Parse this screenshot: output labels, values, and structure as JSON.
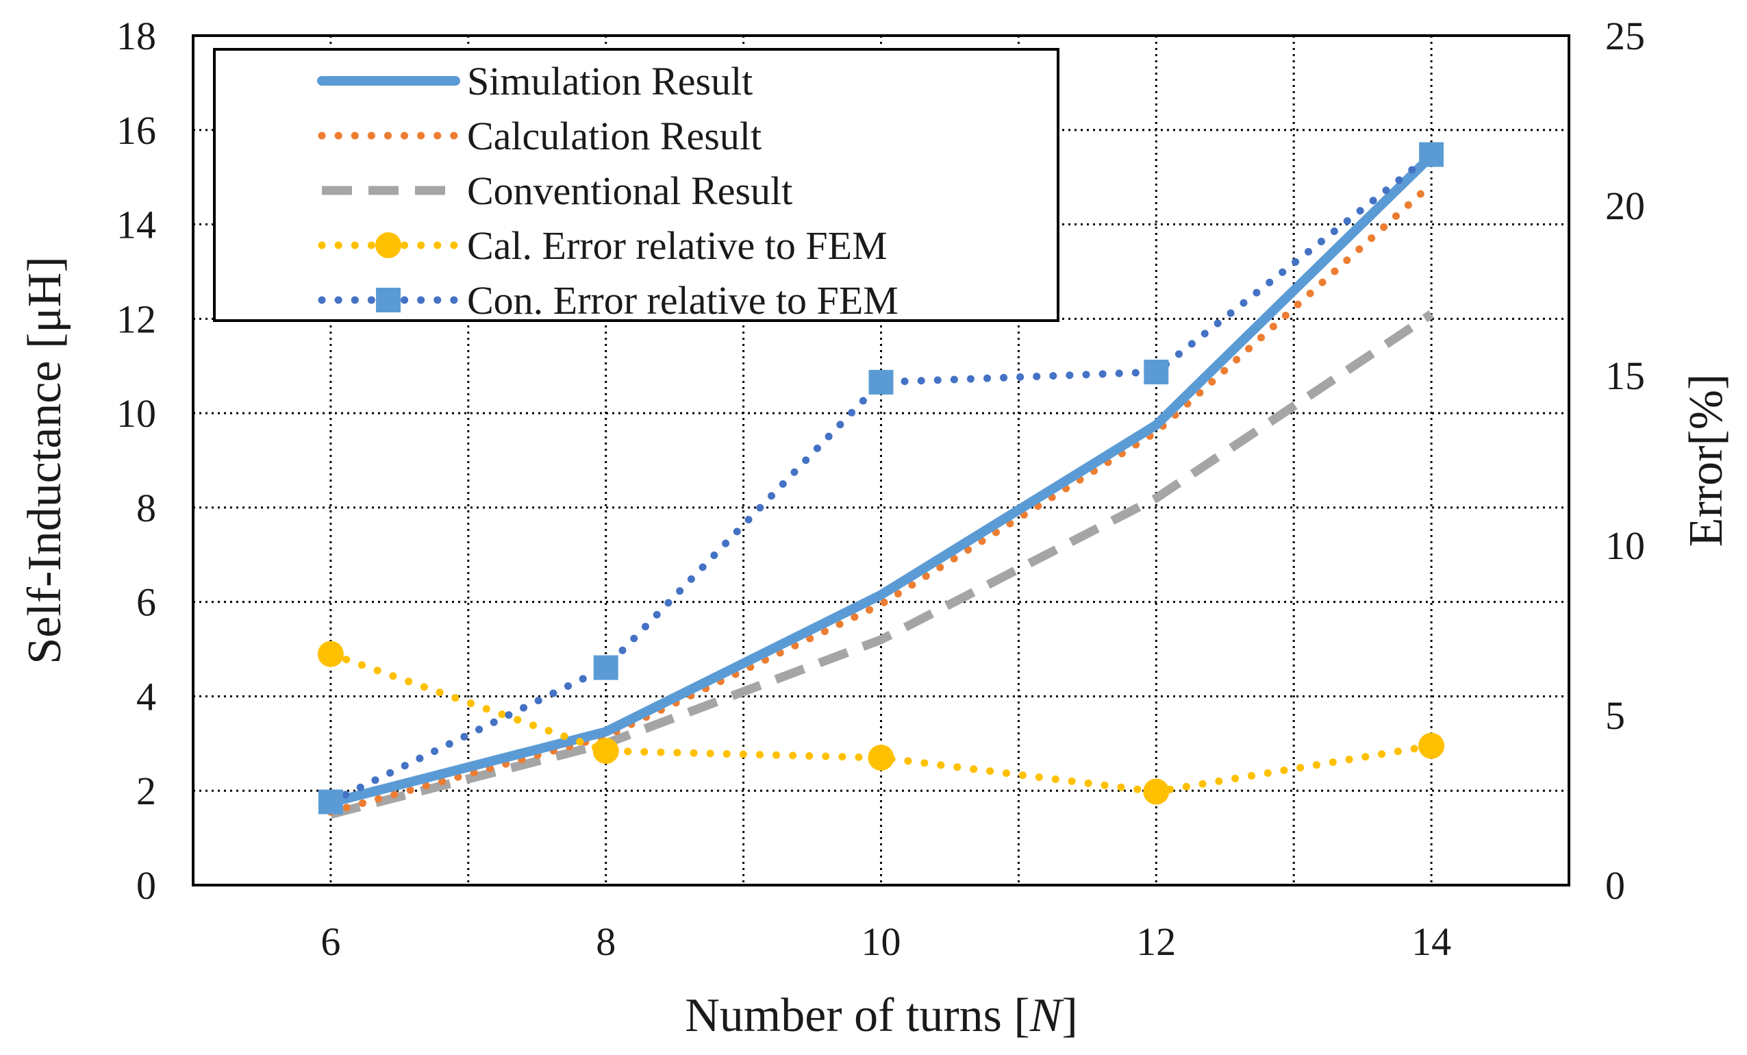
{
  "chart_data": {
    "type": "line",
    "xlabel": "Number of turns [",
    "xlabel_italic": "N",
    "xlabel_end": "]",
    "ylabel": "Self-Inductance [μH]",
    "y2label": "Error[%]",
    "x": [
      6,
      8,
      10,
      12,
      14
    ],
    "xlim": [
      5,
      15
    ],
    "ylim": [
      0,
      18
    ],
    "y2lim": [
      0,
      25
    ],
    "x_ticks": [
      "6",
      "8",
      "10",
      "12",
      "14"
    ],
    "y_ticks": [
      "0",
      "2",
      "4",
      "6",
      "8",
      "10",
      "12",
      "14",
      "16",
      "18"
    ],
    "y2_ticks": [
      "0",
      "5",
      "10",
      "15",
      "20",
      "25"
    ],
    "grid": true,
    "series": [
      {
        "name": "Simulation Result",
        "axis": "left",
        "style": "solid",
        "color": "#5b9bd5",
        "marker": "none",
        "values": [
          1.75,
          3.25,
          6.15,
          9.75,
          15.45
        ]
      },
      {
        "name": "Calculation Result",
        "axis": "left",
        "style": "dotted",
        "color": "#ed7d31",
        "marker": "none",
        "values": [
          1.55,
          3.15,
          5.95,
          9.6,
          14.85
        ]
      },
      {
        "name": "Conventional Result",
        "axis": "left",
        "style": "dashed",
        "color": "#a5a5a5",
        "marker": "none",
        "values": [
          1.5,
          3.0,
          5.2,
          8.2,
          12.1
        ]
      },
      {
        "name": "Cal. Error relative to FEM",
        "axis": "right",
        "style": "dotted",
        "color": "#ffc000",
        "marker": "circle",
        "values": [
          6.8,
          3.95,
          3.75,
          2.75,
          4.1
        ]
      },
      {
        "name": "Con. Error relative to FEM",
        "axis": "right",
        "style": "dotted",
        "color": "#4472c4",
        "marker_color": "#5b9bd5",
        "marker": "square",
        "values": [
          2.45,
          6.4,
          14.8,
          15.1,
          21.5
        ]
      }
    ],
    "legend": "top-left"
  }
}
